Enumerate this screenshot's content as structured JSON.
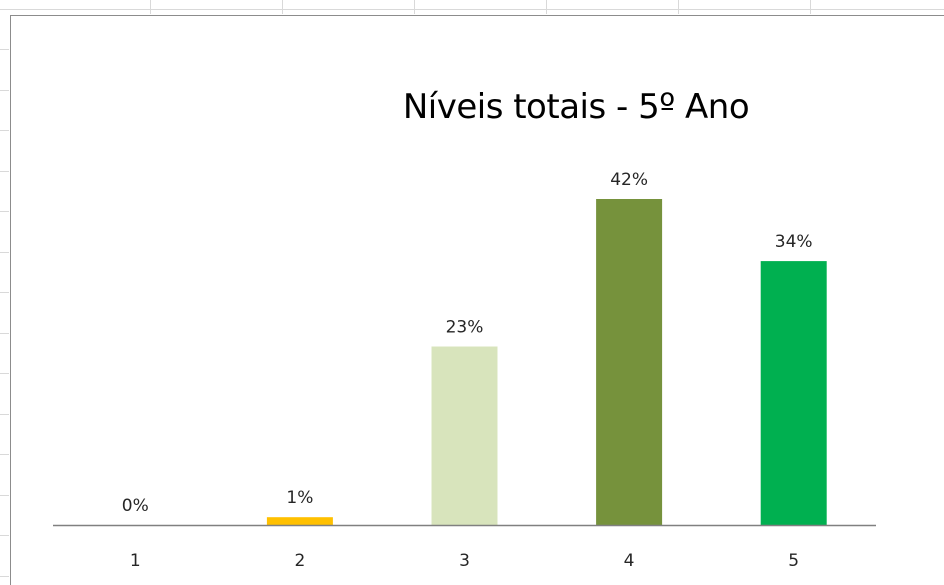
{
  "chart_data": {
    "type": "bar",
    "title": "Níveis totais  - 5º Ano",
    "xlabel": "",
    "ylabel": "",
    "categories": [
      "1",
      "2",
      "3",
      "4",
      "5"
    ],
    "values": [
      0,
      1,
      23,
      42,
      34
    ],
    "value_labels": [
      "0%",
      "1%",
      "23%",
      "42%",
      "34%"
    ],
    "bar_colors": [
      "#ffc000",
      "#ffc000",
      "#d8e4bc",
      "#76923c",
      "#00b050"
    ],
    "axis_color": "#808080",
    "ylim": [
      0,
      42
    ],
    "grid": false,
    "legend": "none"
  }
}
